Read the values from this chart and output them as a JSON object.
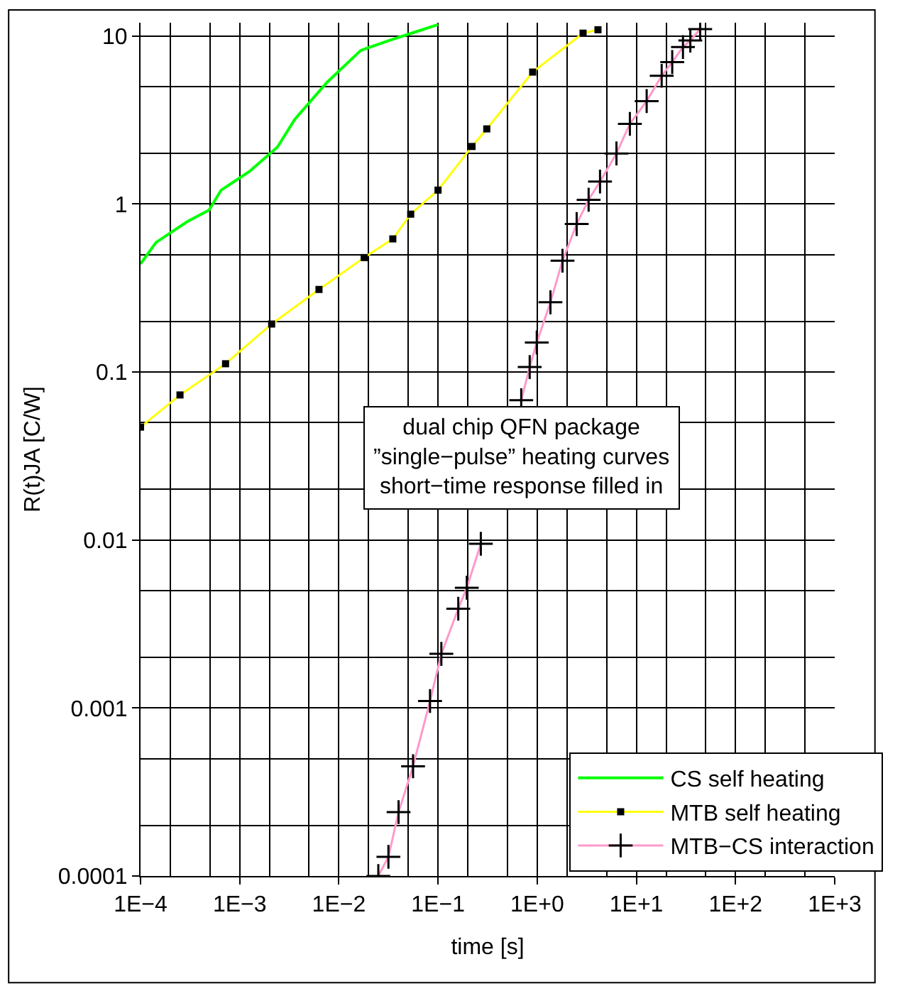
{
  "chart_data": {
    "type": "line",
    "xlabel": "time [s]",
    "ylabel": "R(t)JA [C/W]",
    "log": "xy",
    "grid": true,
    "legend": "bottom right",
    "xlim": [
      0.0001,
      1000
    ],
    "ylim": [
      0.0001,
      12
    ],
    "xticks": [
      {
        "value": 0.0001,
        "label": "1E−4"
      },
      {
        "value": 0.001,
        "label": "1E−3"
      },
      {
        "value": 0.01,
        "label": "1E−2"
      },
      {
        "value": 0.1,
        "label": "1E−1"
      },
      {
        "value": 1,
        "label": "1E+0"
      },
      {
        "value": 10,
        "label": "1E+1"
      },
      {
        "value": 100,
        "label": "1E+2"
      },
      {
        "value": 1000,
        "label": "1E+3"
      }
    ],
    "yticks": [
      0.0001,
      0.001,
      0.01,
      0.1,
      1,
      10
    ],
    "annotations": [
      "dual chip QFN package\n”single−pulse” heating curves\nshort−time response filled in"
    ],
    "series": [
      {
        "name": "CS self heating",
        "color": "#00ff00",
        "marker": "none",
        "line_style": "solid",
        "x": [
          0.0001,
          0.000143,
          0.0003,
          0.00049,
          0.00065,
          0.00125,
          0.0024,
          0.0036,
          0.0076,
          0.0166,
          0.032,
          0.06,
          0.1
        ],
        "values": [
          0.44,
          0.59,
          0.79,
          0.92,
          1.21,
          1.56,
          2.18,
          3.2,
          5.3,
          8.2,
          9.4,
          10.6,
          11.7
        ]
      },
      {
        "name": "MTB self heating",
        "color": "#ffff00",
        "marker": "square",
        "line_style": "solid",
        "x": [
          0.0001,
          0.00025,
          0.00072,
          0.0021,
          0.0063,
          0.018,
          0.035,
          0.053,
          0.1,
          0.22,
          0.31,
          0.9,
          2.9,
          4.1
        ],
        "values": [
          0.047,
          0.073,
          0.112,
          0.193,
          0.31,
          0.48,
          0.62,
          0.87,
          1.21,
          2.2,
          2.8,
          6.1,
          10.4,
          10.9
        ]
      },
      {
        "name": "MTB−CS interaction",
        "color": "#ff99cc",
        "marker": "cross",
        "line_style": "solid",
        "x": [
          0.025,
          0.0316,
          0.04,
          0.056,
          0.083,
          0.108,
          0.16,
          0.195,
          0.27,
          0.5,
          0.69,
          0.84,
          0.99,
          1.36,
          1.8,
          2.5,
          3.3,
          4.3,
          6.3,
          8.6,
          12.7,
          18,
          23,
          29.5,
          35,
          44
        ],
        "values": [
          0.0001,
          0.00013,
          0.00024,
          0.00045,
          0.0011,
          0.0021,
          0.0039,
          0.0052,
          0.0095,
          null,
          0.068,
          0.107,
          0.15,
          0.26,
          0.46,
          0.76,
          1.06,
          1.36,
          2.0,
          3.0,
          4.1,
          5.8,
          7.0,
          8.6,
          9.4,
          11
        ]
      }
    ]
  }
}
